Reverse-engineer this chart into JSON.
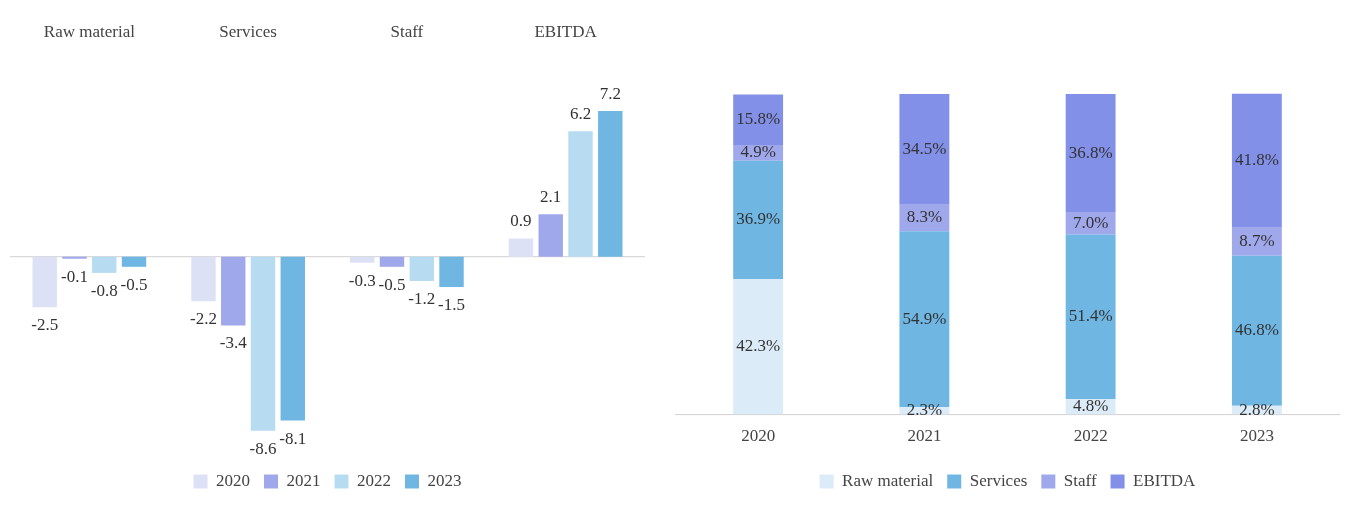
{
  "chart_data": [
    {
      "type": "bar",
      "categories": [
        "Raw material",
        "Services",
        "Staff",
        "EBITDA"
      ],
      "data_labels": true,
      "legend": "bottom",
      "grid": false,
      "series": [
        {
          "name": "2020",
          "color": "#dde1f5",
          "values": [
            -2.5,
            -2.2,
            -0.3,
            0.9
          ]
        },
        {
          "name": "2021",
          "color": "#a0a8ec",
          "values": [
            -0.1,
            -3.4,
            -0.5,
            2.1
          ]
        },
        {
          "name": "2022",
          "color": "#b7dcf2",
          "values": [
            -0.8,
            -8.6,
            -1.2,
            6.2
          ]
        },
        {
          "name": "2023",
          "color": "#6fb6e3",
          "values": [
            -0.5,
            -8.1,
            -1.5,
            7.2
          ]
        }
      ]
    },
    {
      "type": "bar",
      "stacked": true,
      "categories": [
        "2020",
        "2021",
        "2022",
        "2023"
      ],
      "legend": "bottom",
      "grid": false,
      "series": [
        {
          "name": "Raw material",
          "color": "#dcebf8",
          "values": [
            42.3,
            2.3,
            4.8,
            2.8
          ],
          "value_labels": [
            "42.3%",
            "2.3%",
            "4.8%",
            "2.8%"
          ]
        },
        {
          "name": "Services",
          "color": "#6fb6e3",
          "values": [
            36.9,
            54.9,
            51.4,
            46.8
          ],
          "value_labels": [
            "36.9%",
            "54.9%",
            "51.4%",
            "46.8%"
          ]
        },
        {
          "name": "Staff",
          "color": "#a0a8ec",
          "values": [
            4.9,
            8.3,
            7.0,
            8.7
          ],
          "value_labels": [
            "4.9%",
            "8.3%",
            "7.0%",
            "8.7%"
          ]
        },
        {
          "name": "EBITDA",
          "color": "#8290e8",
          "values": [
            15.8,
            34.5,
            36.8,
            41.8
          ],
          "value_labels": [
            "15.8%",
            "34.5%",
            "36.8%",
            "41.8%"
          ]
        }
      ]
    }
  ]
}
